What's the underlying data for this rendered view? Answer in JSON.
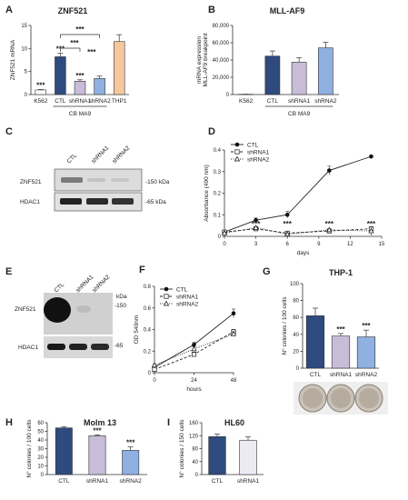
{
  "panels": {
    "A": {
      "letter": "A",
      "chart_data": {
        "type": "bar",
        "title": "ZNF521",
        "ylabel": "ZNF521 mRNA",
        "categories": [
          "K562",
          "CTL",
          "shRNA1",
          "shRNA2",
          "THP1"
        ],
        "values": [
          1,
          8.2,
          2.9,
          3.5,
          11.5
        ],
        "errors": [
          0.1,
          0.8,
          0.3,
          0.5,
          1.5
        ],
        "colors": [
          "#ffffff",
          "#2e4a7e",
          "#c8bcd8",
          "#8fb0e0",
          "#f7c8a0"
        ],
        "ylim": [
          0,
          15
        ],
        "yticks": [
          0,
          5,
          10,
          15
        ],
        "significance": [
          "***",
          "***",
          "***"
        ],
        "group_label": "CB MA9"
      }
    },
    "B": {
      "letter": "B",
      "chart_data": {
        "type": "bar",
        "title": "MLL-AF9",
        "ylabel": "mRNA expression\nMLL-AF9 breakpoint",
        "categories": [
          "K562",
          "CTL",
          "shRNA1",
          "shRNA2"
        ],
        "values": [
          300,
          44500,
          37500,
          54000
        ],
        "errors": [
          100,
          6000,
          5000,
          6500
        ],
        "colors": [
          "#ffffff",
          "#2e4a7e",
          "#c8bcd8",
          "#8fb0e0"
        ],
        "ylim": [
          0,
          80000
        ],
        "yticks": [
          "0",
          "20,000",
          "40,000",
          "60,000",
          "80,000"
        ],
        "group_label": "CB MA9"
      }
    },
    "C": {
      "letter": "C",
      "lanes": [
        "CTL",
        "shRNA1",
        "shRNA2"
      ],
      "rows": [
        "ZNF521",
        "HDAC1"
      ],
      "markers": [
        "-150 kDa",
        "-65 kDa"
      ]
    },
    "D": {
      "letter": "D",
      "chart_data": {
        "type": "line",
        "xlabel": "days",
        "ylabel": "Absorbance (490 nm)",
        "x": [
          0,
          3,
          6,
          10,
          14
        ],
        "xlim": [
          0,
          15
        ],
        "xticks": [
          0,
          3,
          6,
          9,
          12,
          15
        ],
        "ylim": [
          0,
          0.4
        ],
        "yticks": [
          "0",
          "0.1",
          "0.2",
          "0.3",
          "0.4"
        ],
        "legend_position": "top-left",
        "series": [
          {
            "name": "CTL",
            "values": [
              0.02,
              0.075,
              0.1,
              0.305,
              0.37
            ],
            "errors": [
              0.005,
              0.01,
              0.015,
              0.02,
              0.005
            ],
            "marker": "filled-circle",
            "dash": "solid"
          },
          {
            "name": "shRNA1",
            "values": [
              0.02,
              0.035,
              0.015,
              0.025,
              0.035
            ],
            "errors": [
              0.005,
              0.005,
              0.005,
              0.005,
              0.01
            ],
            "marker": "open-square",
            "dash": "dashed"
          },
          {
            "name": "shRNA2",
            "values": [
              0.015,
              0.04,
              0.01,
              0.03,
              0.025
            ],
            "errors": [
              0.005,
              0.005,
              0.005,
              0.005,
              0.02
            ],
            "marker": "open-triangle",
            "dash": "dotted"
          }
        ],
        "significance_x": [
          3,
          6,
          10,
          14
        ],
        "significance": [
          "***",
          "***",
          "***",
          "***"
        ]
      }
    },
    "E": {
      "letter": "E",
      "lanes": [
        "CTL",
        "shRNA1",
        "shRNA2"
      ],
      "rows": [
        "ZNF521",
        "HDAC1"
      ],
      "kda_label": "kDa",
      "markers": [
        "-150",
        "-65"
      ]
    },
    "F": {
      "letter": "F",
      "chart_data": {
        "type": "line",
        "xlabel": "hours",
        "ylabel": "OD 540nm",
        "x": [
          0,
          24,
          48
        ],
        "xlim": [
          0,
          48
        ],
        "xticks": [
          0,
          24,
          48
        ],
        "ylim": [
          0,
          0.8
        ],
        "yticks": [
          "0",
          "0.2",
          "0.4",
          "0.6",
          "0.8"
        ],
        "legend_position": "top-left",
        "series": [
          {
            "name": "CTL",
            "values": [
              0.05,
              0.26,
              0.55
            ],
            "errors": [
              0.01,
              0.02,
              0.04
            ],
            "marker": "filled-circle",
            "dash": "solid"
          },
          {
            "name": "shRNA1",
            "values": [
              0.03,
              0.17,
              0.38
            ],
            "errors": [
              0.01,
              0.02,
              0.02
            ],
            "marker": "open-square",
            "dash": "dashed"
          },
          {
            "name": "shRNA2",
            "values": [
              0.07,
              0.22,
              0.36
            ],
            "errors": [
              0.01,
              0.02,
              0.02
            ],
            "marker": "open-triangle",
            "dash": "dotted"
          }
        ]
      }
    },
    "G": {
      "letter": "G",
      "chart_data": {
        "type": "bar",
        "title": "THP-1",
        "ylabel": "N° colonies / 100 cells",
        "categories": [
          "CTL",
          "shRNA1",
          "shRNA2"
        ],
        "values": [
          62,
          38,
          37
        ],
        "errors": [
          9,
          3,
          8
        ],
        "colors": [
          "#2e4a7e",
          "#c8bcd8",
          "#8fb0e0"
        ],
        "ylim": [
          0,
          100
        ],
        "yticks": [
          0,
          20,
          40,
          60,
          80,
          100
        ],
        "significance": [
          "",
          "***",
          "***"
        ]
      }
    },
    "H": {
      "letter": "H",
      "chart_data": {
        "type": "bar",
        "title": "Molm 13",
        "ylabel": "N° colonies / 100 cells",
        "categories": [
          "CTL",
          "shRNA1",
          "shRNA2"
        ],
        "values": [
          54,
          45,
          28
        ],
        "errors": [
          1.5,
          1,
          4
        ],
        "colors": [
          "#2e4a7e",
          "#c8bcd8",
          "#8fb0e0"
        ],
        "ylim": [
          0,
          60
        ],
        "yticks": [
          0,
          10,
          20,
          30,
          40,
          50,
          60
        ],
        "significance": [
          "",
          "***",
          "***"
        ]
      }
    },
    "I": {
      "letter": "I",
      "chart_data": {
        "type": "bar",
        "title": "HL60",
        "ylabel": "N° colonies / 150 cells",
        "categories": [
          "CTL",
          "shRNA1"
        ],
        "values": [
          117,
          106
        ],
        "errors": [
          8,
          10
        ],
        "colors": [
          "#2e4a7e",
          "#ecebf4"
        ],
        "ylim": [
          0,
          160
        ],
        "yticks": [
          0,
          40,
          80,
          120,
          160
        ]
      }
    }
  }
}
